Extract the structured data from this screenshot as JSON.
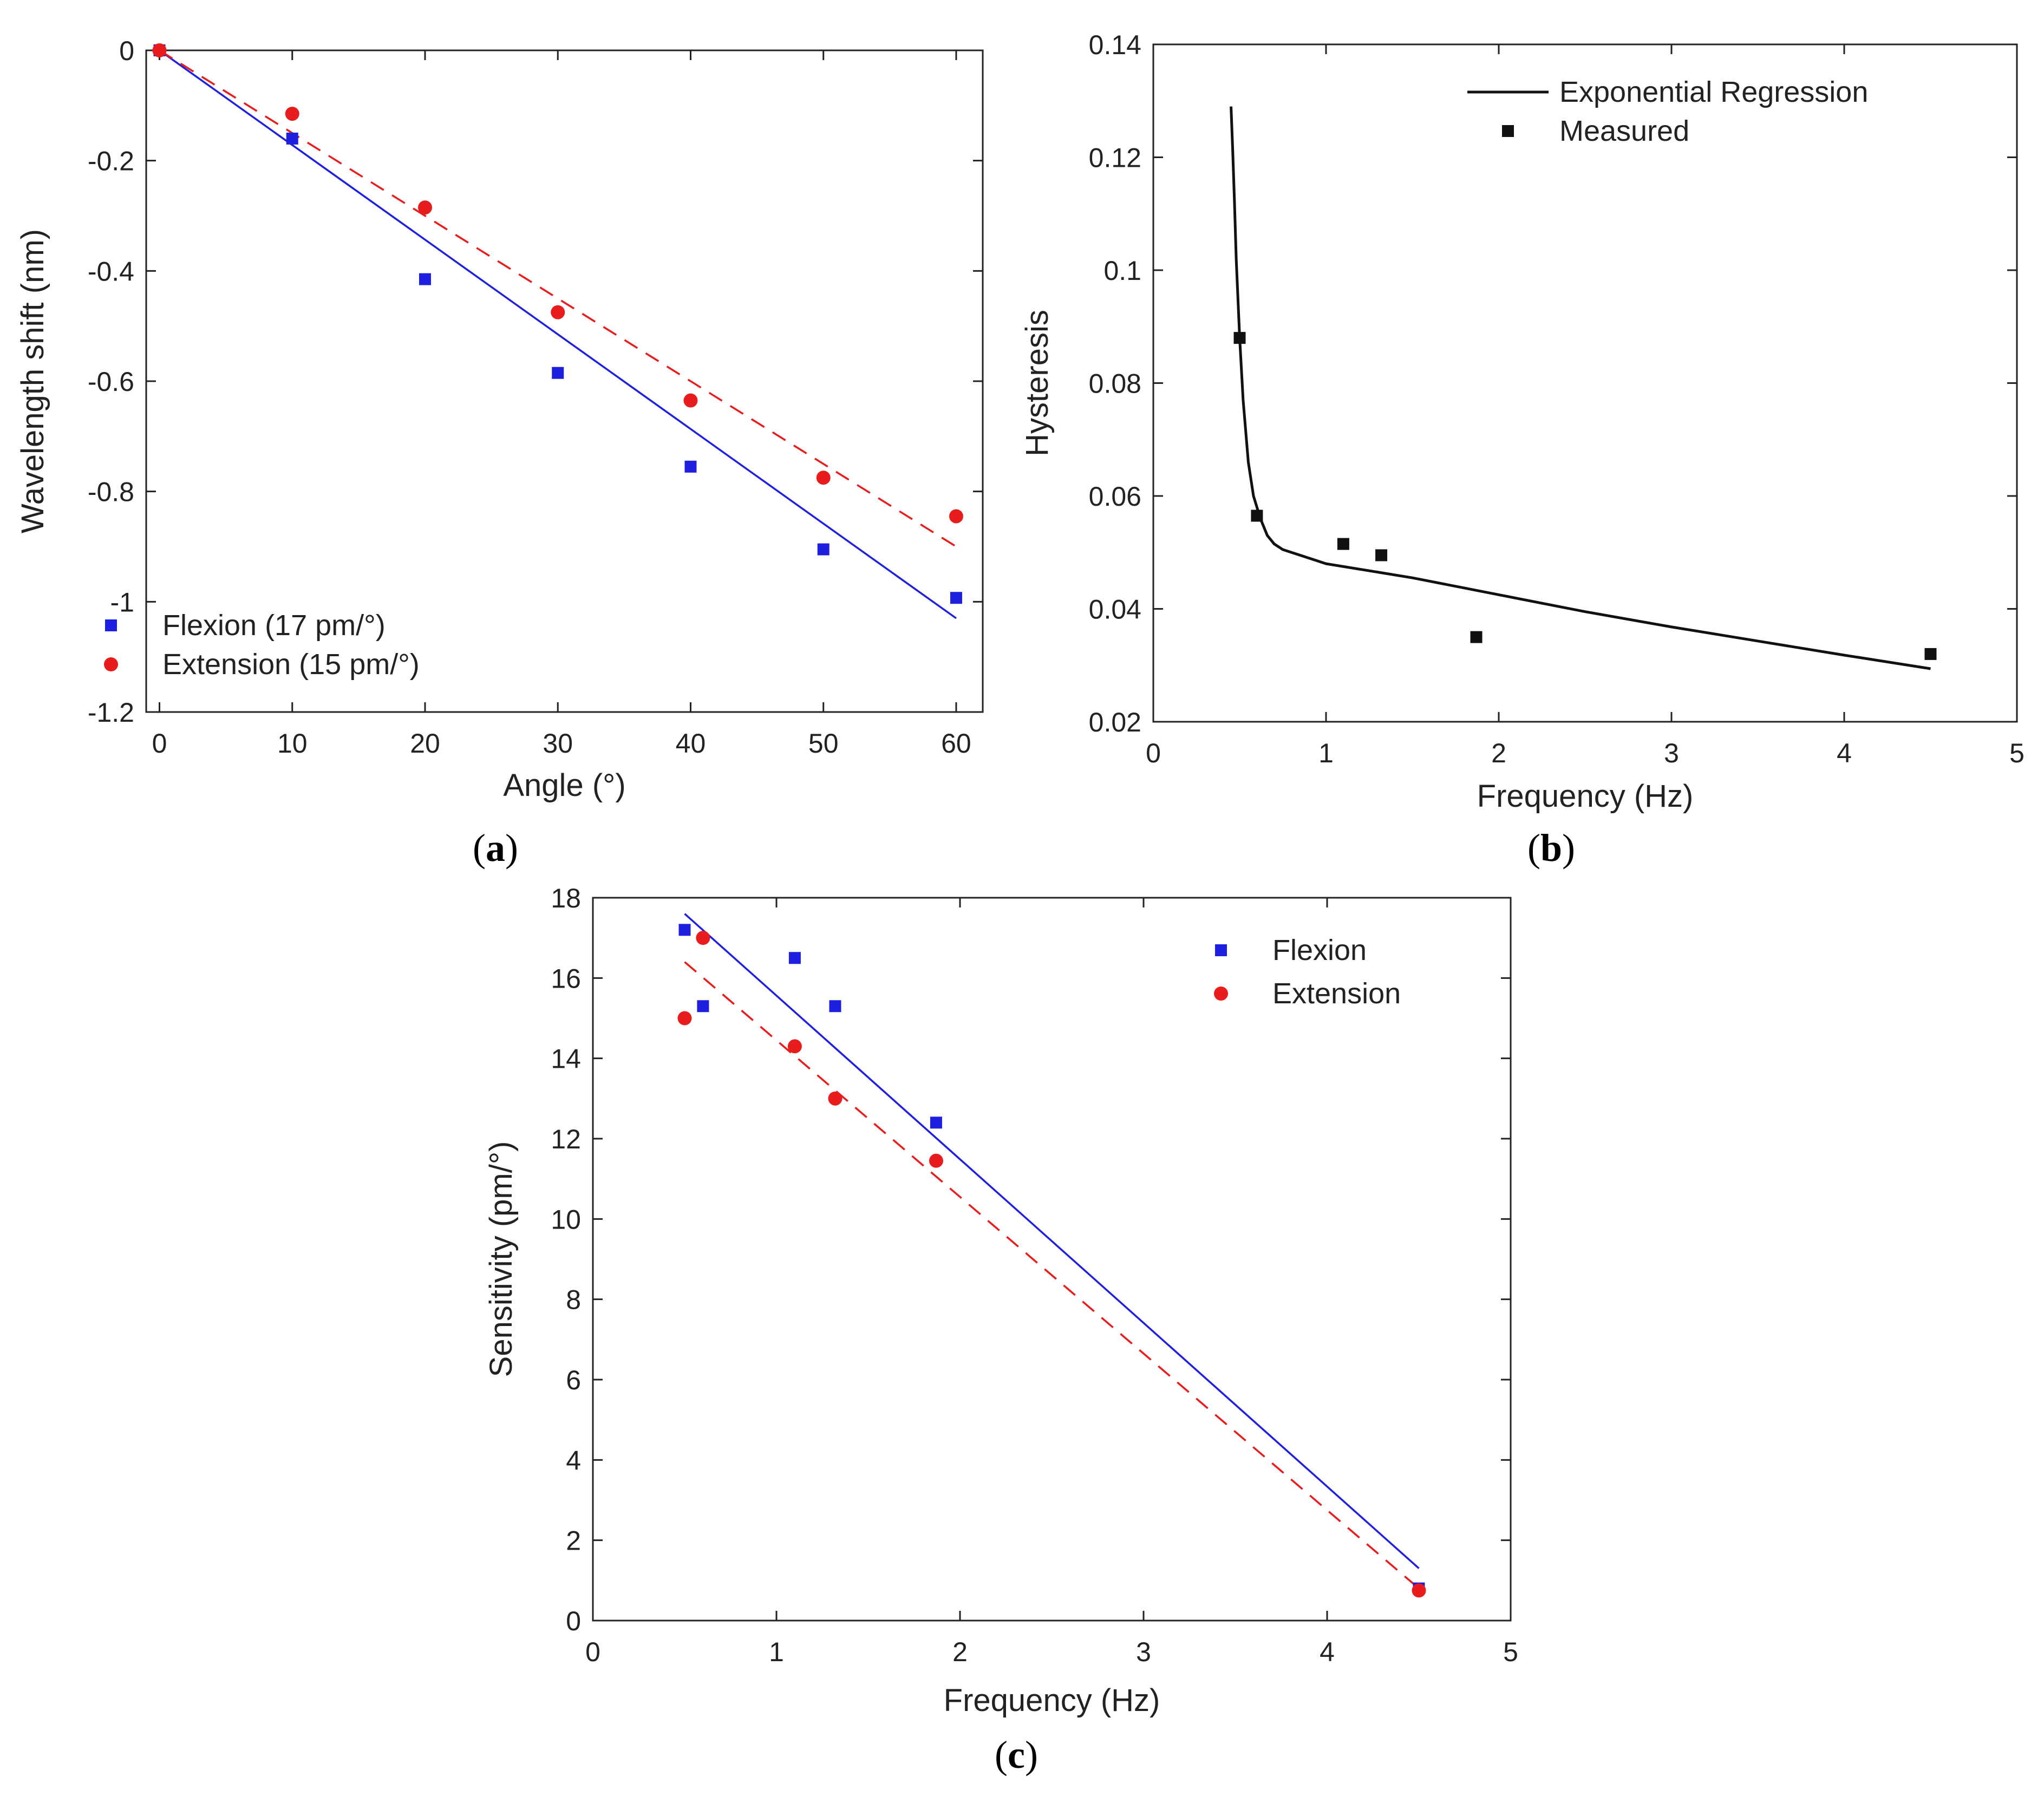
{
  "colors": {
    "flexion": "#1f1fe0",
    "extension": "#e81c1c",
    "regression": "#111111",
    "measured": "#111111",
    "axis": "#222222"
  },
  "chart_data": [
    {
      "id": "a",
      "type": "scatter",
      "caption_letter": "a",
      "title": "",
      "xlabel": "Angle (°)",
      "ylabel": "Wavelength shift (nm)",
      "xlim": [
        -1,
        62
      ],
      "ylim": [
        -1.2,
        0
      ],
      "xticks": [
        0,
        10,
        20,
        30,
        40,
        50,
        60
      ],
      "yticks": [
        0,
        -0.2,
        -0.4,
        -0.6,
        -0.8,
        -1,
        -1.2
      ],
      "xtick_labels": [
        "0",
        "10",
        "20",
        "30",
        "40",
        "50",
        "60"
      ],
      "ytick_labels": [
        "0",
        "-0.2",
        "-0.4",
        "-0.6",
        "-0.8",
        "-1",
        "-1.2"
      ],
      "legend_position": "bottom-left",
      "series": [
        {
          "name": "Flexion (17 pm/°)",
          "marker": "square",
          "color_key": "flexion",
          "x": [
            0,
            10,
            20,
            30,
            40,
            50,
            60
          ],
          "y": [
            0,
            -0.16,
            -0.415,
            -0.585,
            -0.755,
            -0.905,
            -0.993
          ],
          "fit": {
            "style": "solid",
            "x": [
              0,
              60
            ],
            "y": [
              0,
              -1.03
            ]
          }
        },
        {
          "name": "Extension (15 pm/°)",
          "marker": "circle",
          "color_key": "extension",
          "x": [
            0,
            10,
            20,
            30,
            40,
            50,
            60
          ],
          "y": [
            0,
            -0.115,
            -0.285,
            -0.475,
            -0.635,
            -0.775,
            -0.845
          ],
          "fit": {
            "style": "dashed",
            "x": [
              0,
              60
            ],
            "y": [
              0,
              -0.9
            ]
          }
        }
      ]
    },
    {
      "id": "b",
      "type": "scatter",
      "caption_letter": "b",
      "title": "",
      "xlabel": "Frequency (Hz)",
      "ylabel": "Hysteresis",
      "xlim": [
        0,
        5
      ],
      "ylim": [
        0.02,
        0.14
      ],
      "xticks": [
        0,
        1,
        2,
        3,
        4,
        5
      ],
      "yticks": [
        0.02,
        0.04,
        0.06,
        0.08,
        0.1,
        0.12,
        0.14
      ],
      "xtick_labels": [
        "0",
        "1",
        "2",
        "3",
        "4",
        "5"
      ],
      "ytick_labels": [
        "0.02",
        "0.04",
        "0.06",
        "0.08",
        "0.1",
        "0.12",
        "0.14"
      ],
      "legend_position": "top-right",
      "series": [
        {
          "name": "Exponential Regression",
          "marker": "line",
          "color_key": "regression",
          "x": [
            0.45,
            0.46,
            0.47,
            0.48,
            0.5,
            0.52,
            0.55,
            0.58,
            0.62,
            0.66,
            0.7,
            0.75,
            0.8,
            0.9,
            1.0,
            1.5,
            2.0,
            2.5,
            3.0,
            3.5,
            4.0,
            4.5
          ],
          "y": [
            0.129,
            0.121,
            0.112,
            0.102,
            0.088,
            0.077,
            0.066,
            0.06,
            0.056,
            0.053,
            0.0515,
            0.0505,
            0.05,
            0.049,
            0.048,
            0.0455,
            0.0425,
            0.0395,
            0.0368,
            0.0343,
            0.0318,
            0.0294
          ]
        },
        {
          "name": "Measured",
          "marker": "square",
          "color_key": "measured",
          "x": [
            0.5,
            0.6,
            1.1,
            1.32,
            1.87,
            4.5
          ],
          "y": [
            0.088,
            0.0565,
            0.0515,
            0.0495,
            0.035,
            0.032
          ]
        }
      ]
    },
    {
      "id": "c",
      "type": "scatter",
      "caption_letter": "c",
      "title": "",
      "xlabel": "Frequency (Hz)",
      "ylabel": "Sensitivity (pm/°)",
      "xlim": [
        0,
        5
      ],
      "ylim": [
        0,
        18
      ],
      "xticks": [
        0,
        1,
        2,
        3,
        4,
        5
      ],
      "yticks": [
        0,
        2,
        4,
        6,
        8,
        10,
        12,
        14,
        16,
        18
      ],
      "xtick_labels": [
        "0",
        "1",
        "2",
        "3",
        "4",
        "5"
      ],
      "ytick_labels": [
        "0",
        "2",
        "4",
        "6",
        "8",
        "10",
        "12",
        "14",
        "16",
        "18"
      ],
      "legend_position": "top-right",
      "series": [
        {
          "name": "Flexion",
          "marker": "square",
          "color_key": "flexion",
          "x": [
            0.5,
            0.6,
            1.1,
            1.32,
            1.87,
            4.5
          ],
          "y": [
            17.2,
            15.3,
            16.5,
            15.3,
            12.4,
            0.8
          ],
          "fit": {
            "style": "solid",
            "x": [
              0.5,
              4.5
            ],
            "y": [
              17.6,
              1.3
            ]
          }
        },
        {
          "name": "Extension",
          "marker": "circle",
          "color_key": "extension",
          "x": [
            0.5,
            0.6,
            1.1,
            1.32,
            1.87,
            4.5
          ],
          "y": [
            15.0,
            17.0,
            14.3,
            13.0,
            11.45,
            0.75
          ],
          "fit": {
            "style": "dashed",
            "x": [
              0.5,
              4.5
            ],
            "y": [
              16.4,
              0.8
            ]
          }
        }
      ]
    }
  ]
}
